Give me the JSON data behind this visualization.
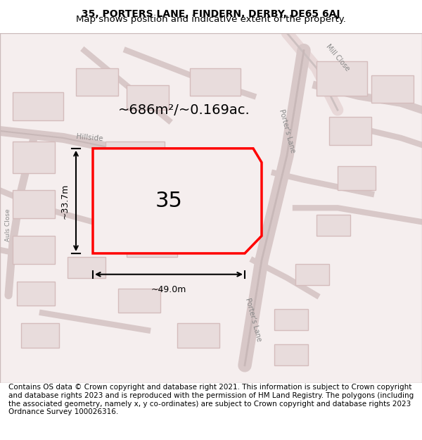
{
  "title_line1": "35, PORTERS LANE, FINDERN, DERBY, DE65 6AJ",
  "title_line2": "Map shows position and indicative extent of the property.",
  "area_text": "~686m²/~0.169ac.",
  "label_35": "35",
  "dim_width": "~49.0m",
  "dim_height": "~33.7m",
  "label_porters_lane_top": "Porter's Lane",
  "label_porters_lane_bottom": "Porter's Lane",
  "label_hillside": "Hillside",
  "label_auls_close": "Auls Close",
  "label_mill_close": "Mill Close",
  "footer": "Contains OS data © Crown copyright and database right 2021. This information is subject to Crown copyright and database rights 2023 and is reproduced with the permission of HM Land Registry. The polygons (including the associated geometry, namely x, y co-ordinates) are subject to Crown copyright and database rights 2023 Ordnance Survey 100026316.",
  "bg_color": "#f5f0f0",
  "map_bg": "#f8f4f4",
  "road_color": "#d8c8c8",
  "building_color": "#e8e0e0",
  "highlight_color": "#ff0000",
  "highlight_fill": "#f5f0f0",
  "road_line_color": "#c0b0b0",
  "street_color": "#e0d8d8",
  "title_fontsize": 10,
  "footer_fontsize": 7.5,
  "area_fontsize": 15,
  "label_fontsize": 20
}
